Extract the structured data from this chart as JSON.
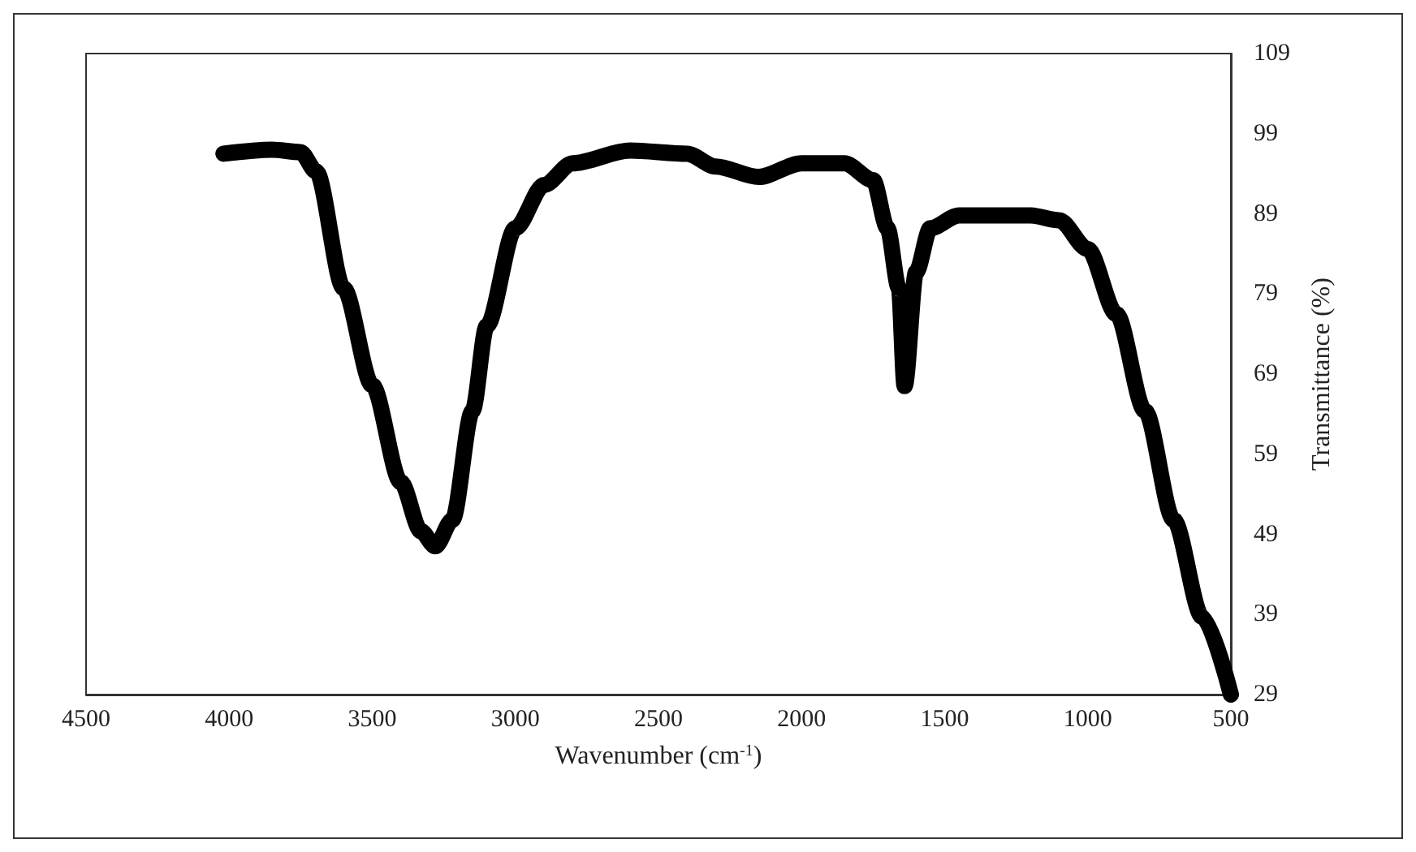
{
  "chart_data": {
    "type": "line",
    "xlabel": "Wavenumber (cm$^{-1}$)",
    "ylabel": "Transmittance (%)",
    "xlim": [
      4500,
      500
    ],
    "xticks": [
      4500,
      4000,
      3500,
      3000,
      2500,
      2000,
      1500,
      1000,
      500
    ],
    "ylim": [
      29,
      109
    ],
    "yticks": [
      29,
      39,
      49,
      59,
      69,
      79,
      89,
      99,
      109
    ],
    "line_style": "solid",
    "series": [
      {
        "color": "#000000",
        "x": [
          4020,
          3850,
          3751,
          3696,
          3600,
          3500,
          3400,
          3330,
          3280,
          3220,
          3150,
          3100,
          3000,
          2900,
          2800,
          2600,
          2400,
          2300,
          2150,
          2000,
          1850,
          1750,
          1700,
          1660,
          1640,
          1600,
          1550,
          1450,
          1200,
          1100,
          1000,
          900,
          800,
          700,
          600,
          500
        ],
        "values": [
          96.5,
          97,
          96.7,
          94.3,
          79.7,
          67.6,
          55.5,
          49.4,
          47.5,
          50.8,
          64.4,
          75,
          87.2,
          92.6,
          95.3,
          96.9,
          96.5,
          94.9,
          93.6,
          95.3,
          95.3,
          93.2,
          87.2,
          79.7,
          67.5,
          81.7,
          87.2,
          88.8,
          88.8,
          88.2,
          84.6,
          76.5,
          64.4,
          50.8,
          38.7,
          29
        ]
      }
    ]
  }
}
